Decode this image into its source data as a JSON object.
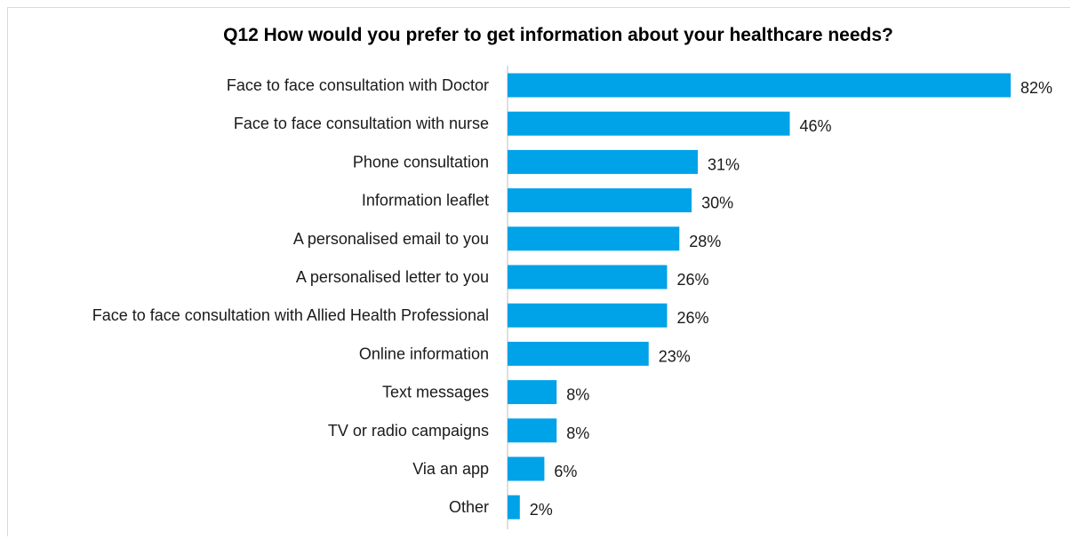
{
  "chart_data": {
    "type": "bar",
    "orientation": "horizontal",
    "title": "Q12 How would you prefer to get information about your healthcare needs?",
    "xlabel": "",
    "ylabel": "",
    "unit": "%",
    "xlim": [
      0,
      82
    ],
    "grid": false,
    "legend": "none",
    "bar_color": "#00a2e8",
    "categories": [
      "Face to face consultation with Doctor",
      "Face to face consultation with nurse",
      "Phone consultation",
      "Information leaflet",
      "A personalised email to you",
      "A personalised letter to you",
      "Face to face consultation with Allied Health Professional",
      "Online information",
      "Text messages",
      "TV or radio campaigns",
      "Via an app",
      "Other"
    ],
    "values": [
      82,
      46,
      31,
      30,
      28,
      26,
      26,
      23,
      8,
      8,
      6,
      2
    ],
    "data_labels": [
      "82%",
      "46%",
      "31%",
      "30%",
      "28%",
      "26%",
      "26%",
      "23%",
      "8%",
      "8%",
      "6%",
      "2%"
    ]
  }
}
